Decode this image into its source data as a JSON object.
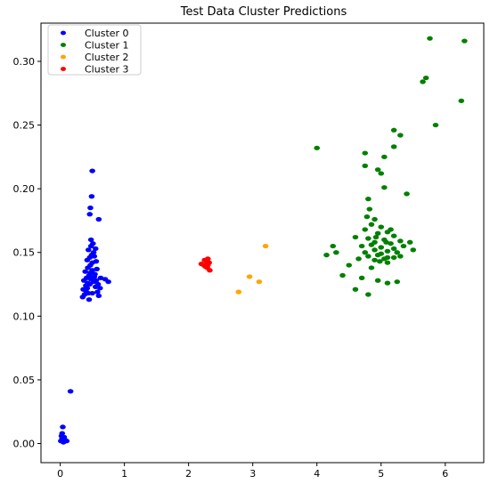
{
  "chart_data": {
    "type": "scatter",
    "title": "Test Data Cluster Predictions",
    "xlabel": "",
    "ylabel": "",
    "xlim": [
      -0.3,
      6.6
    ],
    "ylim": [
      -0.015,
      0.33
    ],
    "xticks": [
      0,
      1,
      2,
      3,
      4,
      5,
      6
    ],
    "yticks": [
      0.0,
      0.05,
      0.1,
      0.15,
      0.2,
      0.25,
      0.3
    ],
    "xtick_labels": [
      "0",
      "1",
      "2",
      "3",
      "4",
      "5",
      "6"
    ],
    "ytick_labels": [
      "0.00",
      "0.05",
      "0.10",
      "0.15",
      "0.20",
      "0.25",
      "0.30"
    ],
    "grid": false,
    "legend_position": "top-left",
    "series": [
      {
        "name": "Cluster 0",
        "color": "#0000ff",
        "points": [
          [
            0.01,
            0.002
          ],
          [
            0.03,
            0.004
          ],
          [
            0.05,
            0.001
          ],
          [
            0.07,
            0.003
          ],
          [
            0.02,
            0.006
          ],
          [
            0.04,
            0.013
          ],
          [
            0.03,
            0.008
          ],
          [
            0.1,
            0.002
          ],
          [
            0.06,
            0.005
          ],
          [
            0.16,
            0.041
          ],
          [
            0.35,
            0.115
          ],
          [
            0.38,
            0.117
          ],
          [
            0.4,
            0.12
          ],
          [
            0.42,
            0.122
          ],
          [
            0.44,
            0.118
          ],
          [
            0.46,
            0.125
          ],
          [
            0.37,
            0.128
          ],
          [
            0.41,
            0.13
          ],
          [
            0.45,
            0.132
          ],
          [
            0.48,
            0.129
          ],
          [
            0.39,
            0.135
          ],
          [
            0.43,
            0.138
          ],
          [
            0.47,
            0.14
          ],
          [
            0.5,
            0.142
          ],
          [
            0.42,
            0.144
          ],
          [
            0.46,
            0.146
          ],
          [
            0.49,
            0.148
          ],
          [
            0.52,
            0.15
          ],
          [
            0.44,
            0.152
          ],
          [
            0.48,
            0.155
          ],
          [
            0.51,
            0.157
          ],
          [
            0.55,
            0.153
          ],
          [
            0.53,
            0.147
          ],
          [
            0.56,
            0.143
          ],
          [
            0.57,
            0.137
          ],
          [
            0.54,
            0.133
          ],
          [
            0.52,
            0.127
          ],
          [
            0.55,
            0.123
          ],
          [
            0.58,
            0.119
          ],
          [
            0.6,
            0.116
          ],
          [
            0.4,
            0.124
          ],
          [
            0.36,
            0.121
          ],
          [
            0.43,
            0.126
          ],
          [
            0.47,
            0.134
          ],
          [
            0.5,
            0.136
          ],
          [
            0.53,
            0.131
          ],
          [
            0.56,
            0.128
          ],
          [
            0.59,
            0.125
          ],
          [
            0.62,
            0.122
          ],
          [
            0.63,
            0.13
          ],
          [
            0.7,
            0.129
          ],
          [
            0.75,
            0.127
          ],
          [
            0.45,
            0.113
          ],
          [
            0.5,
            0.118
          ],
          [
            0.48,
            0.16
          ],
          [
            0.46,
            0.18
          ],
          [
            0.47,
            0.185
          ],
          [
            0.49,
            0.194
          ],
          [
            0.6,
            0.176
          ],
          [
            0.5,
            0.214
          ]
        ]
      },
      {
        "name": "Cluster 1",
        "color": "#008000",
        "points": [
          [
            5.76,
            0.318
          ],
          [
            6.3,
            0.316
          ],
          [
            5.7,
            0.287
          ],
          [
            5.65,
            0.284
          ],
          [
            6.25,
            0.269
          ],
          [
            5.85,
            0.25
          ],
          [
            5.2,
            0.246
          ],
          [
            5.3,
            0.242
          ],
          [
            4.0,
            0.232
          ],
          [
            5.2,
            0.233
          ],
          [
            4.75,
            0.228
          ],
          [
            5.05,
            0.225
          ],
          [
            4.75,
            0.218
          ],
          [
            4.95,
            0.215
          ],
          [
            5.0,
            0.212
          ],
          [
            5.05,
            0.201
          ],
          [
            5.4,
            0.196
          ],
          [
            4.8,
            0.192
          ],
          [
            4.82,
            0.184
          ],
          [
            4.78,
            0.178
          ],
          [
            4.9,
            0.176
          ],
          [
            4.85,
            0.172
          ],
          [
            5.0,
            0.17
          ],
          [
            4.75,
            0.168
          ],
          [
            5.1,
            0.166
          ],
          [
            4.95,
            0.165
          ],
          [
            5.2,
            0.163
          ],
          [
            4.6,
            0.162
          ],
          [
            4.8,
            0.161
          ],
          [
            5.05,
            0.16
          ],
          [
            5.3,
            0.159
          ],
          [
            4.9,
            0.158
          ],
          [
            5.15,
            0.157
          ],
          [
            5.45,
            0.158
          ],
          [
            4.7,
            0.155
          ],
          [
            4.85,
            0.156
          ],
          [
            5.0,
            0.154
          ],
          [
            5.2,
            0.153
          ],
          [
            5.35,
            0.155
          ],
          [
            4.9,
            0.152
          ],
          [
            5.1,
            0.151
          ],
          [
            4.75,
            0.15
          ],
          [
            5.0,
            0.149
          ],
          [
            5.25,
            0.15
          ],
          [
            4.95,
            0.148
          ],
          [
            4.8,
            0.147
          ],
          [
            5.1,
            0.146
          ],
          [
            5.05,
            0.145
          ],
          [
            4.9,
            0.144
          ],
          [
            5.2,
            0.146
          ],
          [
            4.65,
            0.145
          ],
          [
            4.3,
            0.15
          ],
          [
            4.15,
            0.148
          ],
          [
            4.25,
            0.155
          ],
          [
            4.5,
            0.14
          ],
          [
            4.85,
            0.138
          ],
          [
            5.1,
            0.142
          ],
          [
            5.3,
            0.147
          ],
          [
            4.4,
            0.132
          ],
          [
            4.7,
            0.13
          ],
          [
            4.95,
            0.128
          ],
          [
            5.1,
            0.126
          ],
          [
            5.25,
            0.127
          ],
          [
            4.6,
            0.121
          ],
          [
            4.8,
            0.117
          ],
          [
            5.5,
            0.152
          ],
          [
            5.15,
            0.168
          ],
          [
            4.92,
            0.162
          ],
          [
            5.08,
            0.158
          ],
          [
            4.98,
            0.143
          ]
        ]
      },
      {
        "name": "Cluster 2",
        "color": "#ffa500",
        "points": [
          [
            3.2,
            0.155
          ],
          [
            2.95,
            0.131
          ],
          [
            3.1,
            0.127
          ],
          [
            2.78,
            0.119
          ]
        ]
      },
      {
        "name": "Cluster 3",
        "color": "#ff0000",
        "points": [
          [
            2.2,
            0.141
          ],
          [
            2.25,
            0.144
          ],
          [
            2.28,
            0.143
          ],
          [
            2.3,
            0.145
          ],
          [
            2.32,
            0.142
          ],
          [
            2.26,
            0.139
          ],
          [
            2.29,
            0.138
          ],
          [
            2.33,
            0.136
          ],
          [
            2.24,
            0.14
          ],
          [
            2.3,
            0.14
          ]
        ]
      }
    ]
  }
}
